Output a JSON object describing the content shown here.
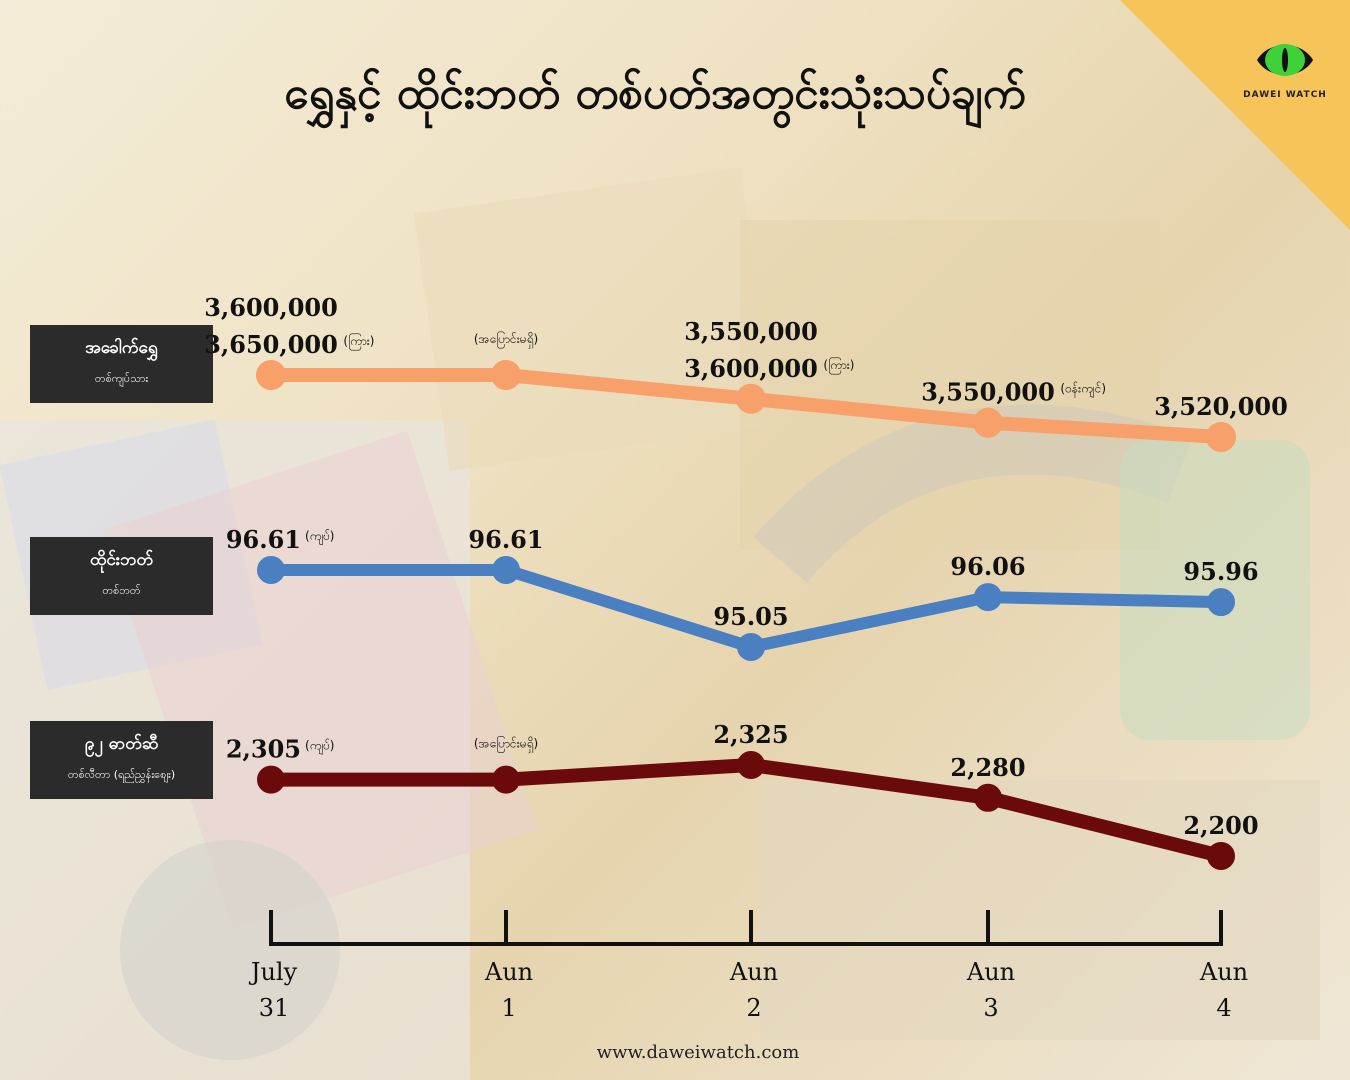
{
  "title": "ရွှေနှင့် ထိုင်းဘတ် တစ်ပတ်အတွင်းသုံးသပ်ချက်",
  "brand": {
    "logo_text": "DAWEI WATCH",
    "website": "www.daweiwatch.com"
  },
  "colors": {
    "gold": "#f7a06a",
    "baht": "#4a7fc1",
    "fuel": "#6b0a0a",
    "accent": "#f7c45a",
    "box": "#2b2b2b"
  },
  "chart_data": {
    "type": "line",
    "categories": [
      {
        "line1": "July",
        "line2": "31"
      },
      {
        "line1": "Aun",
        "line2": "1"
      },
      {
        "line1": "Aun",
        "line2": "2"
      },
      {
        "line1": "Aun",
        "line2": "3"
      },
      {
        "line1": "Aun",
        "line2": "4"
      }
    ],
    "series": [
      {
        "name": "အခေါက်ရွှေ",
        "unit": "တစ်ကျပ်သား",
        "color": "#f7a06a",
        "values": [
          3650000,
          3650000,
          3600000,
          3550000,
          3520000
        ],
        "labels": [
          {
            "lines": [
              "3,600,000",
              "3,650,000"
            ],
            "note": "(ကြား)"
          },
          {
            "lines": [],
            "note": "(အပြောင်းမရှိ)"
          },
          {
            "lines": [
              "3,550,000",
              "3,600,000"
            ],
            "note": "(ကြား)"
          },
          {
            "lines": [
              "3,550,000"
            ],
            "note": "(ဝန်းကျင်)"
          },
          {
            "lines": [
              "3,520,000"
            ],
            "note": ""
          }
        ]
      },
      {
        "name": "ထိုင်းဘတ်",
        "unit": "တစ်ဘတ်",
        "color": "#4a7fc1",
        "values": [
          96.61,
          96.61,
          95.05,
          96.06,
          95.96
        ],
        "labels": [
          {
            "lines": [
              "96.61"
            ],
            "note": "(ကျပ်)"
          },
          {
            "lines": [
              "96.61"
            ],
            "note": ""
          },
          {
            "lines": [
              "95.05"
            ],
            "note": ""
          },
          {
            "lines": [
              "96.06"
            ],
            "note": ""
          },
          {
            "lines": [
              "95.96"
            ],
            "note": ""
          }
        ]
      },
      {
        "name": "၉၂ ဓာတ်ဆီ",
        "unit": "တစ်လီတာ (ရည်ညွှန်းစျေး)",
        "color": "#6b0a0a",
        "values": [
          2305,
          2305,
          2325,
          2280,
          2200
        ],
        "labels": [
          {
            "lines": [
              "2,305"
            ],
            "note": "(ကျပ်)"
          },
          {
            "lines": [],
            "note": "(အပြောင်းမရှိ)"
          },
          {
            "lines": [
              "2,325"
            ],
            "note": ""
          },
          {
            "lines": [
              "2,280"
            ],
            "note": ""
          },
          {
            "lines": [
              "2,200"
            ],
            "note": ""
          }
        ]
      }
    ]
  }
}
